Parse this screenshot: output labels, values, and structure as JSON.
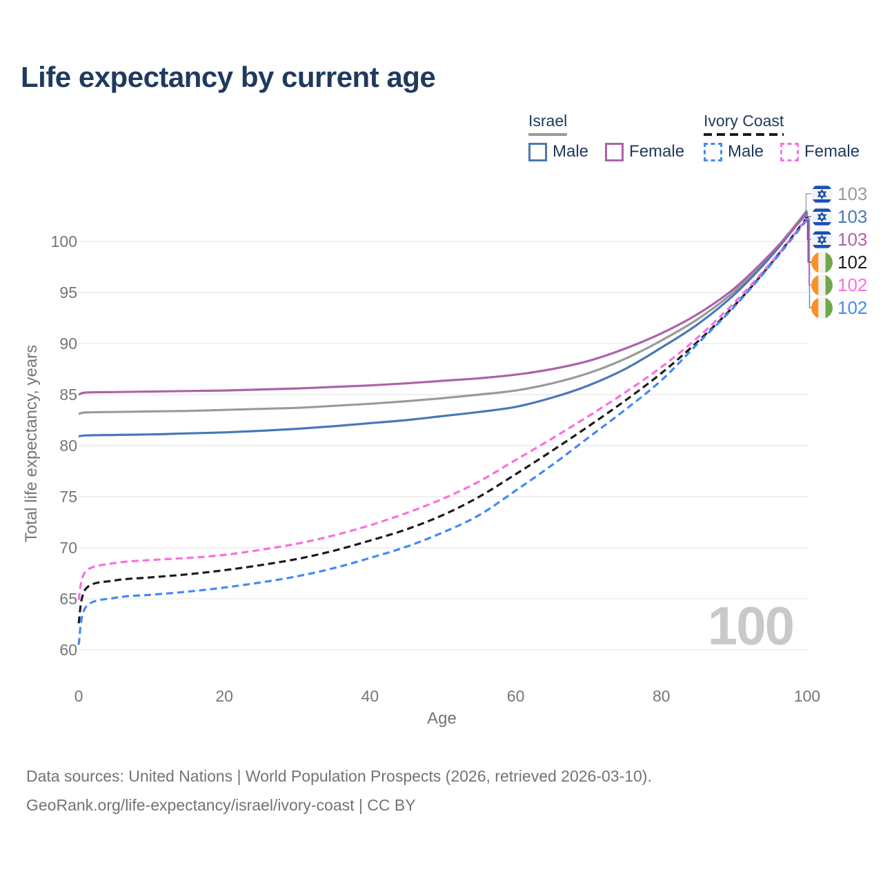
{
  "title": "Life expectancy by current age",
  "legend": {
    "groups": [
      {
        "label": "Israel",
        "line_style": "solid",
        "underline_color": "#9a9a9a",
        "items": [
          {
            "label": "Male",
            "color": "#4878b9"
          },
          {
            "label": "Female",
            "color": "#ad62a8"
          }
        ]
      },
      {
        "label": "Ivory Coast",
        "line_style": "dashed",
        "underline_color": "#1b1b1b",
        "items": [
          {
            "label": "Male",
            "color": "#4389f5"
          },
          {
            "label": "Female",
            "color": "#fb6ee1"
          }
        ]
      }
    ]
  },
  "right_labels": [
    {
      "flag": "israel",
      "value": "103",
      "color": "#9a9a9a"
    },
    {
      "flag": "israel",
      "value": "103",
      "color": "#4878b9"
    },
    {
      "flag": "israel",
      "value": "103",
      "color": "#ad62a8"
    },
    {
      "flag": "ivory-coast",
      "value": "102",
      "color": "#1b1b1b"
    },
    {
      "flag": "ivory-coast",
      "value": "102",
      "color": "#fb6ee1"
    },
    {
      "flag": "ivory-coast",
      "value": "102",
      "color": "#4389f5"
    }
  ],
  "watermark": "100",
  "footer": {
    "line1": "Data sources: United Nations | World Population Prospects (2026, retrieved 2026-03-10).",
    "line2": "GeoRank.org/life-expectancy/israel/ivory-coast | CC BY"
  },
  "chart_data": {
    "type": "line",
    "title": "Life expectancy by current age",
    "xlabel": "Age",
    "ylabel": "Total life expectancy, years",
    "xlim": [
      0,
      100
    ],
    "ylim": [
      60,
      103.5
    ],
    "xticks": [
      0,
      20,
      40,
      60,
      80,
      100
    ],
    "yticks": [
      60,
      65,
      70,
      75,
      80,
      85,
      90,
      95,
      100
    ],
    "grid": "horizontal",
    "legend_position": "top-right",
    "x": [
      0,
      1,
      5,
      10,
      15,
      20,
      25,
      30,
      35,
      40,
      45,
      50,
      55,
      60,
      65,
      70,
      75,
      80,
      85,
      90,
      95,
      100
    ],
    "series": [
      {
        "name": "Israel",
        "color": "#9a9a9a",
        "dashed": false,
        "values": [
          83.1,
          83.25,
          83.3,
          83.35,
          83.4,
          83.5,
          83.6,
          83.7,
          83.9,
          84.1,
          84.35,
          84.65,
          85.0,
          85.4,
          86.1,
          87.1,
          88.5,
          90.3,
          92.4,
          95.1,
          98.7,
          103.05
        ]
      },
      {
        "name": "Israel Male",
        "color": "#4878b9",
        "dashed": false,
        "values": [
          80.9,
          81.0,
          81.05,
          81.1,
          81.2,
          81.3,
          81.45,
          81.65,
          81.9,
          82.2,
          82.5,
          82.9,
          83.3,
          83.8,
          84.7,
          85.9,
          87.5,
          89.6,
          91.9,
          94.8,
          98.5,
          102.9
        ]
      },
      {
        "name": "Israel Female",
        "color": "#ad62a8",
        "dashed": false,
        "values": [
          85.0,
          85.2,
          85.25,
          85.3,
          85.35,
          85.4,
          85.5,
          85.6,
          85.75,
          85.9,
          86.1,
          86.35,
          86.6,
          86.95,
          87.5,
          88.3,
          89.5,
          91.0,
          92.9,
          95.4,
          98.8,
          102.75
        ]
      },
      {
        "name": "Ivory Coast",
        "color": "#1b1b1b",
        "dashed": true,
        "values": [
          62.6,
          66.0,
          66.8,
          67.1,
          67.4,
          67.8,
          68.3,
          68.9,
          69.7,
          70.7,
          71.8,
          73.2,
          75.0,
          77.2,
          79.5,
          81.9,
          84.4,
          87.1,
          90.2,
          93.7,
          97.8,
          102.35
        ]
      },
      {
        "name": "Ivory Coast Female",
        "color": "#fb6ee1",
        "dashed": true,
        "values": [
          64.9,
          67.7,
          68.5,
          68.8,
          69.0,
          69.3,
          69.8,
          70.4,
          71.2,
          72.2,
          73.4,
          74.8,
          76.5,
          78.6,
          80.7,
          82.9,
          85.2,
          87.7,
          90.6,
          94.0,
          97.9,
          102.25
        ]
      },
      {
        "name": "Ivory Coast Male",
        "color": "#4389f5",
        "dashed": true,
        "values": [
          60.5,
          64.2,
          65.1,
          65.4,
          65.7,
          66.1,
          66.6,
          67.2,
          68.0,
          69.0,
          70.1,
          71.5,
          73.2,
          75.6,
          78.1,
          80.8,
          83.5,
          86.4,
          90.0,
          93.6,
          97.7,
          102.15
        ]
      }
    ]
  }
}
